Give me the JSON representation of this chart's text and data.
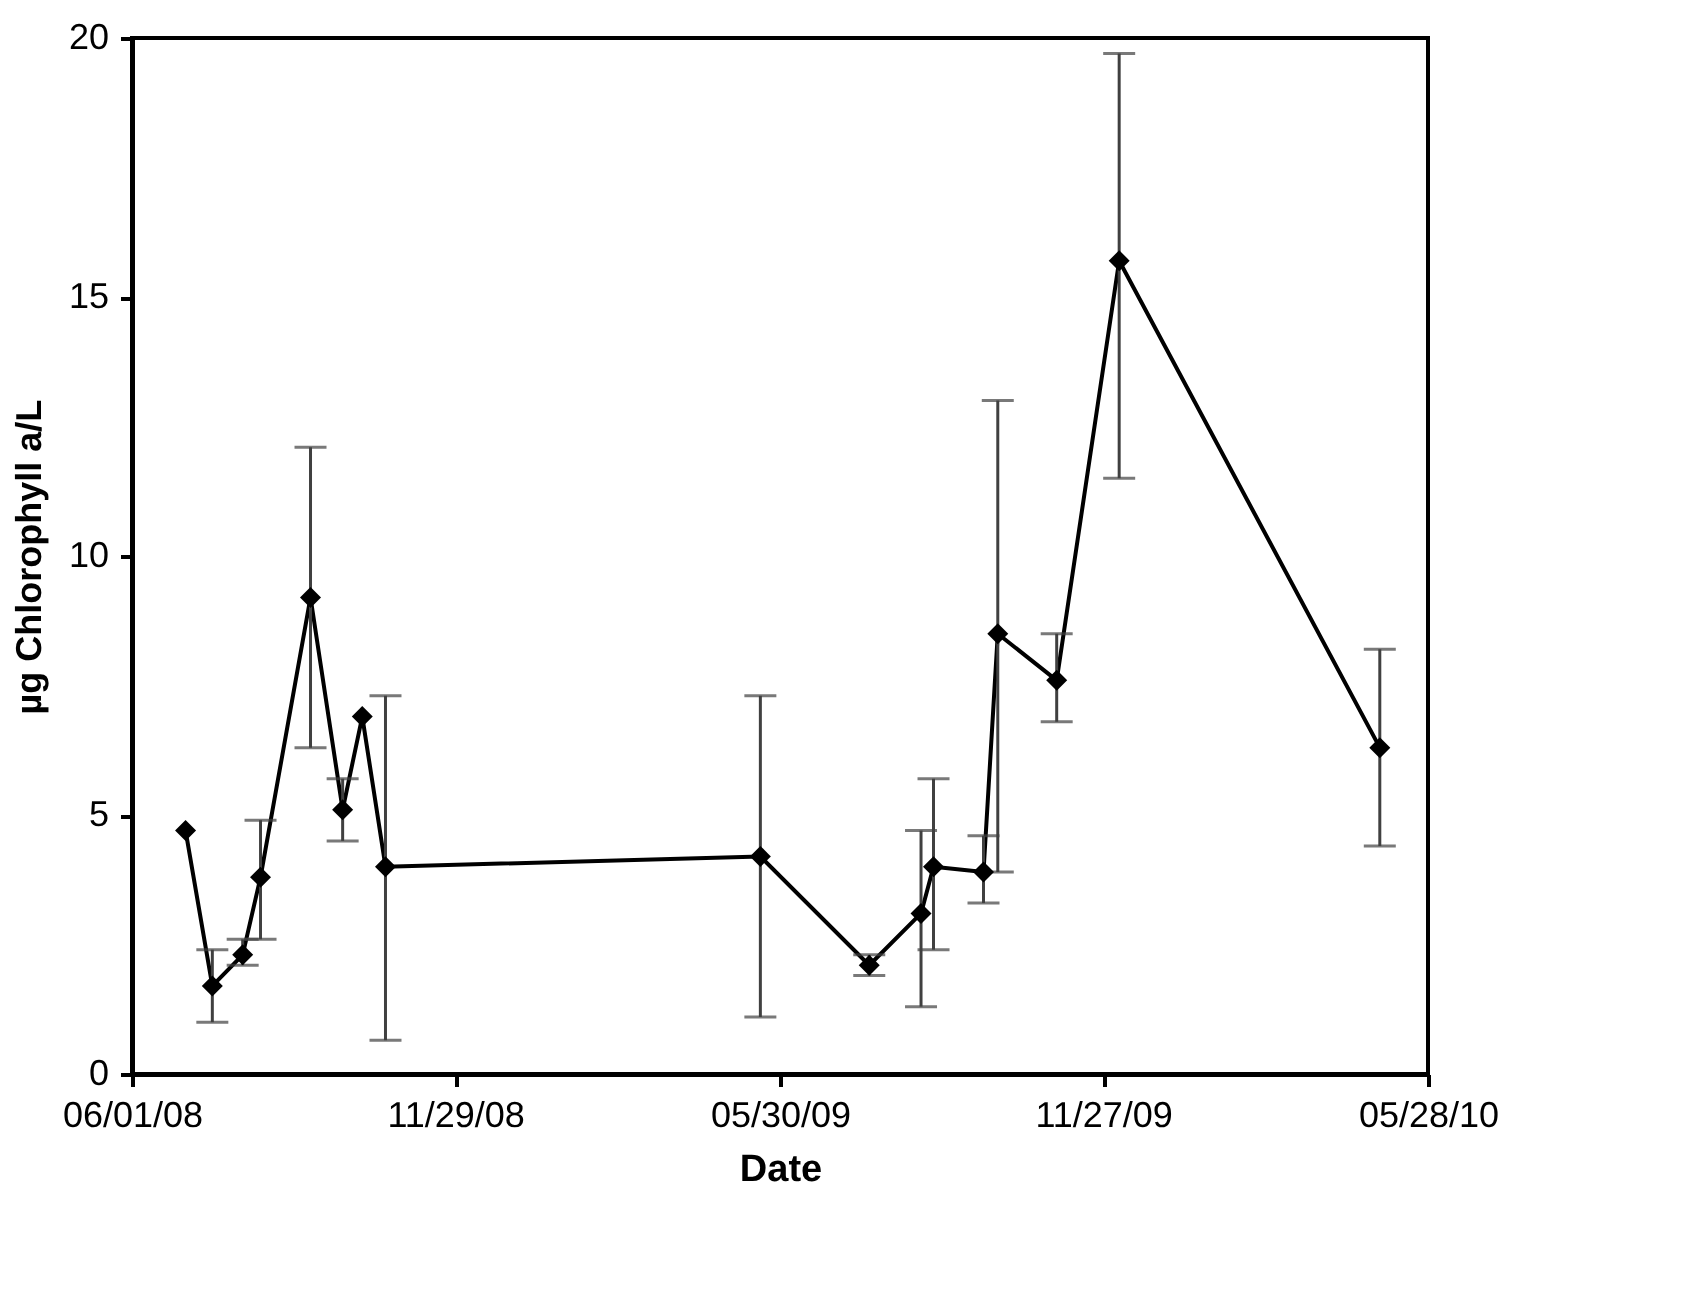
{
  "chart_data": {
    "type": "line",
    "xlabel": "Date",
    "ylabel": "µg Chlorophyll a/L",
    "x": [
      "2008-07-01",
      "2008-07-16",
      "2008-08-02",
      "2008-08-12",
      "2008-09-09",
      "2008-09-27",
      "2008-10-08",
      "2008-10-21",
      "2009-05-19",
      "2009-07-19",
      "2009-08-17",
      "2009-08-24",
      "2009-09-21",
      "2009-09-29",
      "2009-11-01",
      "2009-12-06",
      "2010-05-01"
    ],
    "series": [
      {
        "color": "#000000",
        "values": [
          4.7,
          1.7,
          2.3,
          3.8,
          9.2,
          5.1,
          6.9,
          4.0,
          4.2,
          2.1,
          3.1,
          4.0,
          3.9,
          8.5,
          7.6,
          15.7,
          6.3
        ],
        "errors": [
          null,
          [
            1.0,
            2.4
          ],
          [
            2.1,
            2.6
          ],
          [
            2.6,
            4.9
          ],
          [
            6.3,
            12.1
          ],
          [
            4.5,
            5.7
          ],
          null,
          [
            0.65,
            7.3
          ],
          [
            1.1,
            7.3
          ],
          [
            1.9,
            2.3
          ],
          [
            1.3,
            4.7
          ],
          [
            2.4,
            5.7
          ],
          [
            3.3,
            4.6
          ],
          [
            3.9,
            13.0
          ],
          [
            6.8,
            8.5
          ],
          [
            11.5,
            19.7
          ],
          [
            4.4,
            8.2
          ]
        ]
      }
    ],
    "marker": "diamond",
    "line_style": "solid",
    "grid": false,
    "xlim": [
      "2008-06-01",
      "2010-05-28"
    ],
    "xticks": [
      {
        "value": "2008-06-01",
        "label": "06/01/08"
      },
      {
        "value": "2008-11-29",
        "label": "11/29/08"
      },
      {
        "value": "2009-05-30",
        "label": "05/30/09"
      },
      {
        "value": "2009-11-27",
        "label": "11/27/09"
      },
      {
        "value": "2010-05-28",
        "label": "05/28/10"
      }
    ],
    "ylim": [
      0,
      20
    ],
    "yticks": [
      0,
      5,
      10,
      15,
      20
    ]
  }
}
